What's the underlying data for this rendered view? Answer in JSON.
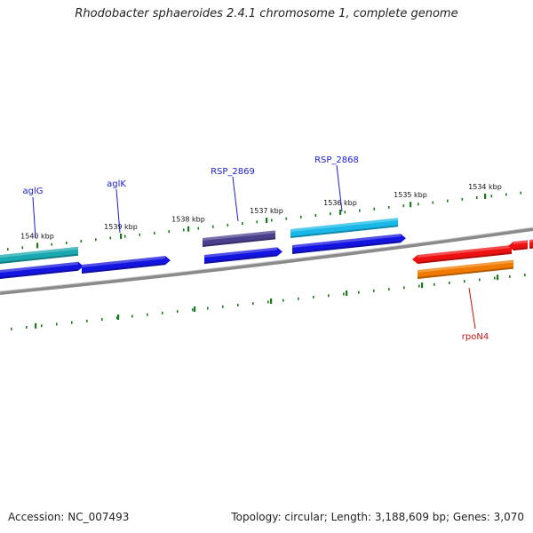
{
  "title": "Rhodobacter sphaeroides 2.4.1 chromosome 1, complete genome",
  "footer": {
    "accession": "Accession: NC_007493",
    "summary": "Topology: circular; Length: 3,188,609 bp; Genes: 3,070"
  },
  "colors": {
    "backbone": "#8a8a8a",
    "tick": "#1b7a1b",
    "label_blue": "#1a1ad6",
    "label_red": "#cc1111"
  },
  "ticks": [
    {
      "label": "1540 kbp"
    },
    {
      "label": "1539 kbp"
    },
    {
      "label": "1538 kbp"
    },
    {
      "label": "1537 kbp"
    },
    {
      "label": "1536 kbp"
    },
    {
      "label": "1535 kbp"
    },
    {
      "label": "1534 kbp"
    }
  ],
  "genes": [
    {
      "name": "aglG",
      "color": "#1aa9b0"
    },
    {
      "name": "aglK",
      "color": "#1414e0"
    },
    {
      "name": "RSP_2869",
      "color": "#4a3f8c"
    },
    {
      "name": "RSP_2868",
      "color": "#19b8e8"
    },
    {
      "name": "rpoN4",
      "color": "#f07a00"
    }
  ],
  "features": [
    {
      "color": "#1aa9b0"
    },
    {
      "color": "#1414e0"
    },
    {
      "color": "#1414e0"
    },
    {
      "color": "#4a3f8c"
    },
    {
      "color": "#1414e0"
    },
    {
      "color": "#19b8e8"
    },
    {
      "color": "#1414e0"
    },
    {
      "color": "#ee1111"
    },
    {
      "color": "#f07a00"
    },
    {
      "color": "#ee1111"
    },
    {
      "color": "#ee1111"
    }
  ]
}
